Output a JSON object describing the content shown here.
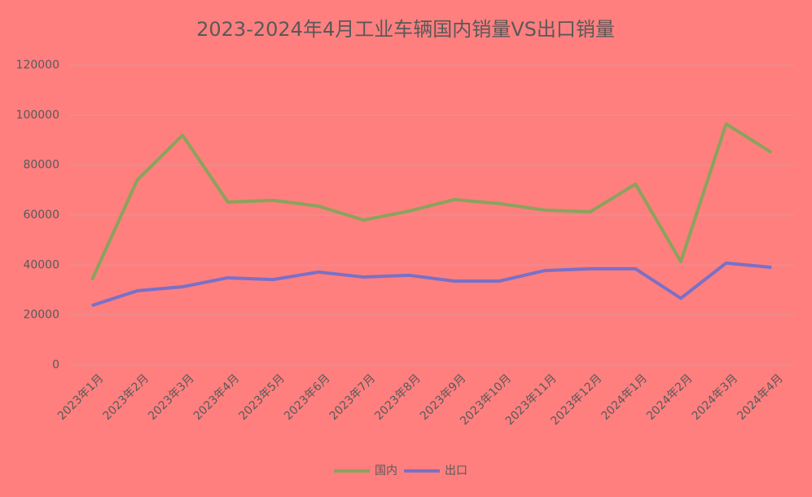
{
  "chart_data": {
    "type": "line",
    "title": "2023-2024年4月工业车辆国内销量VS出口销量",
    "categories": [
      "2023年1月",
      "2023年2月",
      "2023年3月",
      "2023年4月",
      "2023年5月",
      "2023年6月",
      "2023年7月",
      "2023年8月",
      "2023年9月",
      "2023年10月",
      "2023年11月",
      "2023年12月",
      "2024年1月",
      "2024年2月",
      "2024年3月",
      "2024年4月"
    ],
    "series": [
      {
        "name": "国内",
        "color": "#8aa35c",
        "values": [
          34000,
          74000,
          92000,
          65200,
          65900,
          63600,
          58000,
          61600,
          66200,
          64600,
          62000,
          61300,
          72400,
          41400,
          96500,
          85100
        ]
      },
      {
        "name": "出口",
        "color": "#7b70c6",
        "values": [
          23800,
          29700,
          31300,
          34900,
          34200,
          37200,
          35200,
          35900,
          33600,
          33600,
          37800,
          38500,
          38500,
          26700,
          40800,
          39100
        ]
      }
    ],
    "ylim": [
      0,
      120000
    ],
    "yticks": [
      0,
      20000,
      40000,
      60000,
      80000,
      100000,
      120000
    ],
    "grid": true,
    "legend": "bottom"
  }
}
